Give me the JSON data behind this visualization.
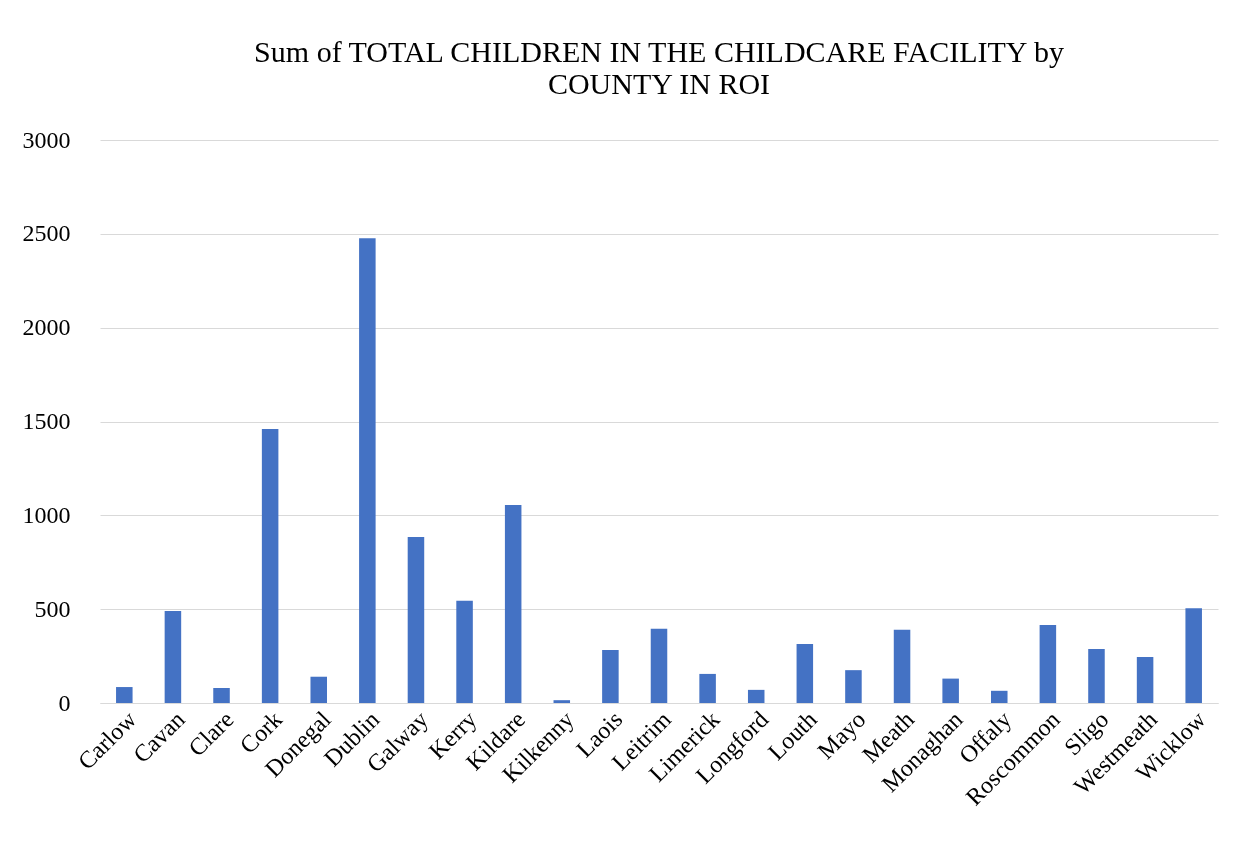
{
  "chart_data": {
    "type": "bar",
    "title": "Sum of TOTAL CHILDREN IN THE CHILDCARE FACILITY by COUNTY IN ROI",
    "categories": [
      "Carlow",
      "Cavan",
      "Clare",
      "Cork",
      "Donegal",
      "Dublin",
      "Galway",
      "Kerry",
      "Kildare",
      "Kilkenny",
      "Laois",
      "Leitrim",
      "Limerick",
      "Longford",
      "Louth",
      "Mayo",
      "Meath",
      "Monaghan",
      "Offaly",
      "Roscommon",
      "Sligo",
      "Westmeath",
      "Wicklow"
    ],
    "values": [
      85,
      490,
      80,
      1460,
      140,
      2477,
      885,
      545,
      1055,
      15,
      282,
      395,
      155,
      70,
      315,
      175,
      390,
      130,
      65,
      415,
      288,
      245,
      505
    ],
    "color": "#4472c4",
    "ylim": [
      0,
      3000
    ],
    "yticks": [
      0,
      500,
      1000,
      1500,
      2000,
      2500,
      3000
    ],
    "grid": "y"
  }
}
